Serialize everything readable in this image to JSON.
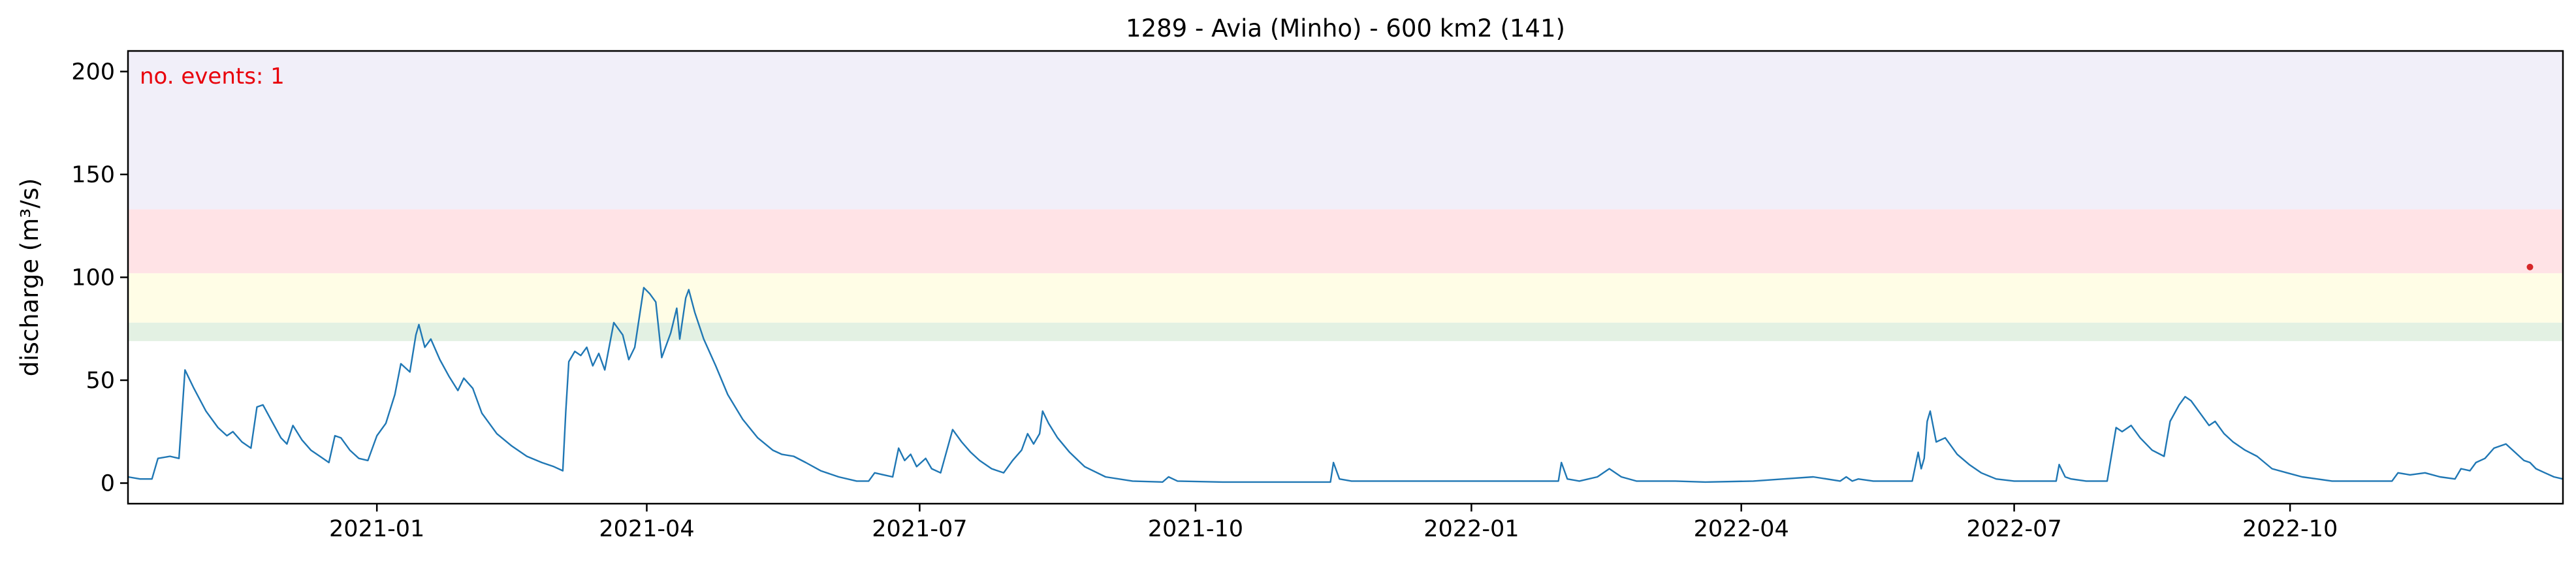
{
  "chart_data": {
    "type": "line",
    "title": "1289 - Avia (Minho) - 600 km2 (141)",
    "xlabel": "",
    "ylabel": "discharge (m³/s)",
    "xlim": [
      "2020-10-10",
      "2022-12-31"
    ],
    "ylim": [
      -10,
      210
    ],
    "yticks": [
      0,
      50,
      100,
      150,
      200
    ],
    "xticks": [
      {
        "date": "2021-01-01",
        "label": "2021-01"
      },
      {
        "date": "2021-04-01",
        "label": "2021-04"
      },
      {
        "date": "2021-07-01",
        "label": "2021-07"
      },
      {
        "date": "2021-10-01",
        "label": "2021-10"
      },
      {
        "date": "2022-01-01",
        "label": "2022-01"
      },
      {
        "date": "2022-04-01",
        "label": "2022-04"
      },
      {
        "date": "2022-07-01",
        "label": "2022-07"
      },
      {
        "date": "2022-10-01",
        "label": "2022-10"
      }
    ],
    "grid": false,
    "threshold_bands": [
      {
        "from": 69,
        "to": 78,
        "color": "#e3f1e3"
      },
      {
        "from": 78,
        "to": 102,
        "color": "#fffde6"
      },
      {
        "from": 102,
        "to": 133,
        "color": "#ffe3e6"
      },
      {
        "from": 133,
        "to": 210,
        "color": "#f1eff9"
      }
    ],
    "series": [
      {
        "color": "#1f77b4",
        "points": [
          [
            "2020-10-10",
            3
          ],
          [
            "2020-10-14",
            2
          ],
          [
            "2020-10-18",
            2
          ],
          [
            "2020-10-20",
            12
          ],
          [
            "2020-10-24",
            13
          ],
          [
            "2020-10-27",
            12
          ],
          [
            "2020-10-29",
            55
          ],
          [
            "2020-11-01",
            46
          ],
          [
            "2020-11-05",
            35
          ],
          [
            "2020-11-09",
            27
          ],
          [
            "2020-11-12",
            23
          ],
          [
            "2020-11-14",
            25
          ],
          [
            "2020-11-17",
            20
          ],
          [
            "2020-11-20",
            17
          ],
          [
            "2020-11-22",
            37
          ],
          [
            "2020-11-24",
            38
          ],
          [
            "2020-11-27",
            30
          ],
          [
            "2020-11-30",
            22
          ],
          [
            "2020-12-02",
            19
          ],
          [
            "2020-12-04",
            28
          ],
          [
            "2020-12-07",
            21
          ],
          [
            "2020-12-10",
            16
          ],
          [
            "2020-12-13",
            13
          ],
          [
            "2020-12-16",
            10
          ],
          [
            "2020-12-18",
            23
          ],
          [
            "2020-12-20",
            22
          ],
          [
            "2020-12-23",
            16
          ],
          [
            "2020-12-26",
            12
          ],
          [
            "2020-12-29",
            11
          ],
          [
            "2021-01-01",
            23
          ],
          [
            "2021-01-04",
            29
          ],
          [
            "2021-01-07",
            43
          ],
          [
            "2021-01-09",
            58
          ],
          [
            "2021-01-12",
            54
          ],
          [
            "2021-01-14",
            72
          ],
          [
            "2021-01-15",
            77
          ],
          [
            "2021-01-17",
            66
          ],
          [
            "2021-01-19",
            70
          ],
          [
            "2021-01-22",
            60
          ],
          [
            "2021-01-25",
            52
          ],
          [
            "2021-01-28",
            45
          ],
          [
            "2021-01-30",
            51
          ],
          [
            "2021-02-02",
            46
          ],
          [
            "2021-02-05",
            34
          ],
          [
            "2021-02-10",
            24
          ],
          [
            "2021-02-15",
            18
          ],
          [
            "2021-02-20",
            13
          ],
          [
            "2021-02-25",
            10
          ],
          [
            "2021-03-01",
            8
          ],
          [
            "2021-03-04",
            6
          ],
          [
            "2021-03-05",
            35
          ],
          [
            "2021-03-06",
            59
          ],
          [
            "2021-03-08",
            64
          ],
          [
            "2021-03-10",
            62
          ],
          [
            "2021-03-12",
            66
          ],
          [
            "2021-03-14",
            57
          ],
          [
            "2021-03-16",
            63
          ],
          [
            "2021-03-18",
            55
          ],
          [
            "2021-03-21",
            78
          ],
          [
            "2021-03-24",
            72
          ],
          [
            "2021-03-26",
            60
          ],
          [
            "2021-03-28",
            66
          ],
          [
            "2021-03-31",
            95
          ],
          [
            "2021-04-02",
            92
          ],
          [
            "2021-04-04",
            88
          ],
          [
            "2021-04-06",
            61
          ],
          [
            "2021-04-09",
            73
          ],
          [
            "2021-04-11",
            85
          ],
          [
            "2021-04-12",
            70
          ],
          [
            "2021-04-14",
            90
          ],
          [
            "2021-04-15",
            94
          ],
          [
            "2021-04-17",
            83
          ],
          [
            "2021-04-20",
            70
          ],
          [
            "2021-04-24",
            57
          ],
          [
            "2021-04-28",
            43
          ],
          [
            "2021-05-03",
            31
          ],
          [
            "2021-05-08",
            22
          ],
          [
            "2021-05-13",
            16
          ],
          [
            "2021-05-16",
            14
          ],
          [
            "2021-05-20",
            13
          ],
          [
            "2021-05-24",
            10
          ],
          [
            "2021-05-29",
            6
          ],
          [
            "2021-06-04",
            3
          ],
          [
            "2021-06-10",
            1
          ],
          [
            "2021-06-14",
            1
          ],
          [
            "2021-06-16",
            5
          ],
          [
            "2021-06-19",
            4
          ],
          [
            "2021-06-22",
            3
          ],
          [
            "2021-06-24",
            17
          ],
          [
            "2021-06-26",
            11
          ],
          [
            "2021-06-28",
            14
          ],
          [
            "2021-06-30",
            8
          ],
          [
            "2021-07-03",
            12
          ],
          [
            "2021-07-05",
            7
          ],
          [
            "2021-07-08",
            5
          ],
          [
            "2021-07-12",
            26
          ],
          [
            "2021-07-15",
            20
          ],
          [
            "2021-07-18",
            15
          ],
          [
            "2021-07-21",
            11
          ],
          [
            "2021-07-25",
            7
          ],
          [
            "2021-07-29",
            5
          ],
          [
            "2021-08-01",
            11
          ],
          [
            "2021-08-04",
            16
          ],
          [
            "2021-08-06",
            24
          ],
          [
            "2021-08-08",
            19
          ],
          [
            "2021-08-10",
            24
          ],
          [
            "2021-08-11",
            35
          ],
          [
            "2021-08-13",
            29
          ],
          [
            "2021-08-16",
            22
          ],
          [
            "2021-08-20",
            15
          ],
          [
            "2021-08-25",
            8
          ],
          [
            "2021-09-01",
            3
          ],
          [
            "2021-09-10",
            1
          ],
          [
            "2021-09-20",
            0.5
          ],
          [
            "2021-09-22",
            3
          ],
          [
            "2021-09-25",
            1
          ],
          [
            "2021-10-10",
            0.5
          ],
          [
            "2021-11-15",
            0.5
          ],
          [
            "2021-11-16",
            10
          ],
          [
            "2021-11-18",
            2
          ],
          [
            "2021-11-22",
            1
          ],
          [
            "2021-12-20",
            1
          ],
          [
            "2022-01-10",
            1
          ],
          [
            "2022-01-20",
            1
          ],
          [
            "2022-01-30",
            1
          ],
          [
            "2022-01-31",
            10
          ],
          [
            "2022-02-02",
            2
          ],
          [
            "2022-02-06",
            1
          ],
          [
            "2022-02-12",
            3
          ],
          [
            "2022-02-16",
            7
          ],
          [
            "2022-02-20",
            3
          ],
          [
            "2022-02-25",
            1
          ],
          [
            "2022-03-10",
            1
          ],
          [
            "2022-03-20",
            0.5
          ],
          [
            "2022-04-05",
            1
          ],
          [
            "2022-04-15",
            2
          ],
          [
            "2022-04-25",
            3
          ],
          [
            "2022-05-04",
            1
          ],
          [
            "2022-05-06",
            3
          ],
          [
            "2022-05-08",
            1
          ],
          [
            "2022-05-10",
            2
          ],
          [
            "2022-05-15",
            1
          ],
          [
            "2022-05-28",
            1
          ],
          [
            "2022-05-30",
            15
          ],
          [
            "2022-05-31",
            7
          ],
          [
            "2022-06-01",
            12
          ],
          [
            "2022-06-02",
            30
          ],
          [
            "2022-06-03",
            35
          ],
          [
            "2022-06-05",
            20
          ],
          [
            "2022-06-08",
            22
          ],
          [
            "2022-06-12",
            14
          ],
          [
            "2022-06-16",
            9
          ],
          [
            "2022-06-20",
            5
          ],
          [
            "2022-06-25",
            2
          ],
          [
            "2022-07-01",
            1
          ],
          [
            "2022-07-15",
            1
          ],
          [
            "2022-07-16",
            9
          ],
          [
            "2022-07-17",
            6
          ],
          [
            "2022-07-18",
            3
          ],
          [
            "2022-07-20",
            2
          ],
          [
            "2022-07-25",
            1
          ],
          [
            "2022-08-01",
            1
          ],
          [
            "2022-08-04",
            27
          ],
          [
            "2022-08-06",
            25
          ],
          [
            "2022-08-09",
            28
          ],
          [
            "2022-08-12",
            22
          ],
          [
            "2022-08-16",
            16
          ],
          [
            "2022-08-20",
            13
          ],
          [
            "2022-08-22",
            30
          ],
          [
            "2022-08-25",
            38
          ],
          [
            "2022-08-27",
            42
          ],
          [
            "2022-08-29",
            40
          ],
          [
            "2022-09-01",
            34
          ],
          [
            "2022-09-04",
            28
          ],
          [
            "2022-09-06",
            30
          ],
          [
            "2022-09-09",
            24
          ],
          [
            "2022-09-12",
            20
          ],
          [
            "2022-09-16",
            16
          ],
          [
            "2022-09-20",
            13
          ],
          [
            "2022-09-25",
            7
          ],
          [
            "2022-09-30",
            5
          ],
          [
            "2022-10-05",
            3
          ],
          [
            "2022-10-10",
            2
          ],
          [
            "2022-10-15",
            1
          ],
          [
            "2022-10-20",
            1
          ],
          [
            "2022-11-04",
            1
          ],
          [
            "2022-11-06",
            5
          ],
          [
            "2022-11-10",
            4
          ],
          [
            "2022-11-15",
            5
          ],
          [
            "2022-11-20",
            3
          ],
          [
            "2022-11-25",
            2
          ],
          [
            "2022-11-27",
            7
          ],
          [
            "2022-11-30",
            6
          ],
          [
            "2022-12-02",
            10
          ],
          [
            "2022-12-05",
            12
          ],
          [
            "2022-12-08",
            17
          ],
          [
            "2022-12-12",
            19
          ],
          [
            "2022-12-15",
            15
          ],
          [
            "2022-12-18",
            11
          ],
          [
            "2022-12-20",
            10
          ],
          [
            "2022-12-22",
            7
          ],
          [
            "2022-12-25",
            5
          ],
          [
            "2022-12-28",
            3
          ],
          [
            "2022-12-31",
            2
          ]
        ]
      }
    ],
    "event_markers": [
      {
        "date": "2022-12-20",
        "value": 105,
        "color": "#d62728"
      }
    ],
    "annotations": [
      {
        "text": "no. events: 1",
        "color": "#e8000b"
      }
    ]
  }
}
